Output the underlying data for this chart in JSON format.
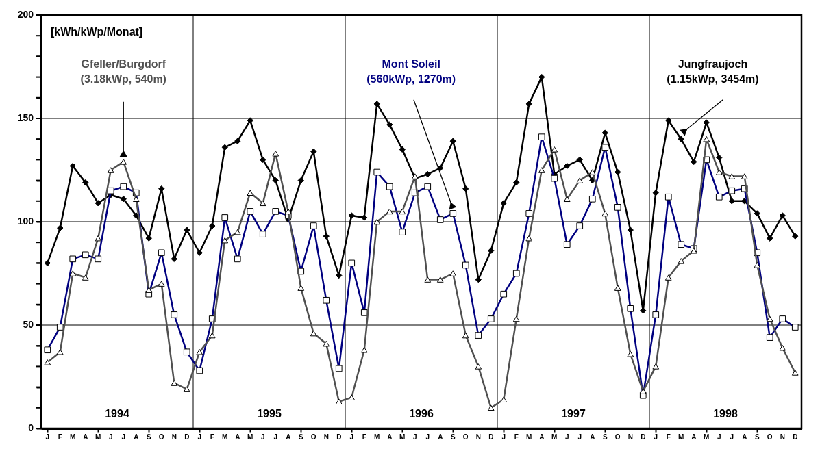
{
  "chart_data": {
    "type": "line",
    "ylabel": "[kWh/kWp/Monat]",
    "categories": [
      "J",
      "F",
      "M",
      "A",
      "M",
      "J",
      "J",
      "A",
      "S",
      "O",
      "N",
      "D",
      "J",
      "F",
      "M",
      "A",
      "M",
      "J",
      "J",
      "A",
      "S",
      "O",
      "N",
      "D",
      "J",
      "F",
      "M",
      "A",
      "M",
      "J",
      "J",
      "A",
      "S",
      "O",
      "N",
      "D",
      "J",
      "F",
      "M",
      "A",
      "M",
      "J",
      "J",
      "A",
      "S",
      "O",
      "N",
      "D",
      "J",
      "F",
      "M",
      "A",
      "M",
      "J",
      "J",
      "A",
      "S",
      "O",
      "N",
      "D"
    ],
    "series": [
      {
        "name": "Jungfraujoch (1.15kWp, 3454m)",
        "color": "#000000",
        "marker": "diamond",
        "values": [
          80,
          97,
          127,
          119,
          109,
          113,
          111,
          103,
          92,
          116,
          82,
          96,
          85,
          98,
          136,
          139,
          149,
          130,
          120,
          101,
          120,
          134,
          93,
          74,
          103,
          102,
          157,
          147,
          135,
          121,
          123,
          126,
          139,
          116,
          72,
          86,
          109,
          119,
          157,
          170,
          123,
          127,
          130,
          120,
          143,
          124,
          96,
          57,
          114,
          149,
          140,
          129,
          148,
          131,
          110,
          110,
          104,
          92,
          103,
          93
        ]
      },
      {
        "name": "Mont Soleil (560kWp, 1270m)",
        "color": "#000080",
        "marker": "square",
        "values": [
          38,
          49,
          82,
          84,
          82,
          115,
          117,
          114,
          65,
          85,
          55,
          37,
          28,
          53,
          102,
          82,
          105,
          94,
          105,
          103,
          76,
          98,
          62,
          29,
          80,
          56,
          124,
          117,
          95,
          114,
          117,
          101,
          104,
          79,
          45,
          53,
          65,
          75,
          104,
          141,
          121,
          89,
          98,
          111,
          136,
          107,
          58,
          16,
          55,
          112,
          89,
          87,
          130,
          112,
          115,
          116,
          85,
          44,
          53,
          49
        ]
      },
      {
        "name": "Gfeller/Burgdorf (3.18kWp, 540m)",
        "color": "#505050",
        "marker": "triangle",
        "values": [
          32,
          37,
          75,
          73,
          92,
          125,
          129,
          111,
          67,
          70,
          22,
          19,
          37,
          45,
          91,
          95,
          114,
          109,
          133,
          105,
          68,
          46,
          41,
          13,
          15,
          38,
          100,
          105,
          105,
          122,
          72,
          72,
          75,
          45,
          30,
          10,
          14,
          53,
          92,
          125,
          135,
          111,
          120,
          124,
          104,
          68,
          36,
          18,
          30,
          73,
          81,
          86,
          140,
          124,
          122,
          122,
          79,
          53,
          39,
          27
        ]
      }
    ],
    "ylim": [
      0,
      200
    ],
    "yticks": [
      0,
      {
        "value": 10,
        "label": null
      },
      {
        "value": 20,
        "label": null
      },
      {
        "value": 30,
        "label": null
      },
      {
        "value": 40,
        "label": null
      },
      50,
      {
        "value": 60,
        "label": null
      },
      {
        "value": 70,
        "label": null
      },
      {
        "value": 80,
        "label": null
      },
      {
        "value": 90,
        "label": null
      },
      100,
      {
        "value": 110,
        "label": null
      },
      {
        "value": 120,
        "label": null
      },
      {
        "value": 130,
        "label": null
      },
      {
        "value": 140,
        "label": null
      },
      150,
      {
        "value": 160,
        "label": null
      },
      {
        "value": 170,
        "label": null
      },
      {
        "value": 180,
        "label": null
      },
      {
        "value": 190,
        "label": null
      },
      200
    ],
    "annotations": [
      "1994",
      "1995",
      "1996",
      "1997",
      "1998"
    ],
    "grid": true,
    "legend": false
  }
}
